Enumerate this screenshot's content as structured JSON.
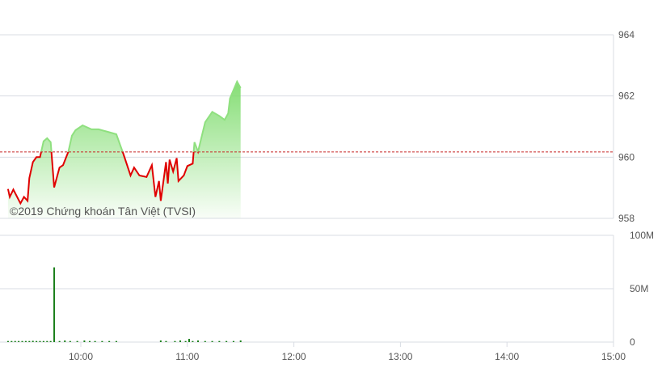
{
  "watermark": "©2019 Chứng khoán Tân Việt (TVSI)",
  "colors": {
    "up": "#8fe07f",
    "down": "#e00000",
    "reference": "#c62828",
    "volume": "#1a7f1a",
    "grid": "#d8dce3"
  },
  "chart_data": [
    {
      "type": "area",
      "reference_price": 960.17,
      "ylim": [
        958,
        964
      ],
      "y_ticks": [
        "958",
        "960",
        "962",
        "964"
      ],
      "x_ticks": [
        "10:00",
        "11:00",
        "12:00",
        "13:00",
        "14:00",
        "15:00"
      ],
      "grid": true,
      "x": [
        "09:19",
        "09:20",
        "09:22",
        "09:26",
        "09:28",
        "09:30",
        "09:31",
        "09:33",
        "09:35",
        "09:37",
        "09:39",
        "09:41",
        "09:43",
        "09:45",
        "09:48",
        "09:50",
        "09:53",
        "09:55",
        "09:57",
        "10:01",
        "10:06",
        "10:10",
        "10:15",
        "10:20",
        "10:24",
        "10:28",
        "10:30",
        "10:33",
        "10:37",
        "10:40",
        "10:42",
        "10:44",
        "10:45",
        "10:48",
        "10:49",
        "10:50",
        "10:52",
        "10:54",
        "10:55",
        "10:58",
        "11:00",
        "11:03",
        "11:04",
        "11:06",
        "11:10",
        "11:14",
        "11:18",
        "11:21",
        "11:23",
        "11:24",
        "11:28",
        "11:30"
      ],
      "y": [
        958.96,
        958.7,
        958.94,
        958.49,
        958.7,
        958.57,
        959.32,
        959.84,
        960.0,
        960.0,
        960.52,
        960.62,
        960.49,
        959.01,
        959.66,
        959.74,
        960.18,
        960.7,
        960.88,
        961.04,
        960.91,
        960.91,
        960.83,
        960.75,
        960.1,
        959.4,
        959.66,
        959.4,
        959.35,
        959.74,
        958.7,
        959.22,
        958.57,
        959.84,
        959.14,
        959.92,
        959.53,
        959.97,
        959.22,
        959.4,
        959.71,
        959.79,
        960.49,
        960.18,
        961.14,
        961.48,
        961.35,
        961.22,
        961.43,
        961.92,
        962.47,
        962.26
      ]
    },
    {
      "type": "bar",
      "ylim": [
        0,
        100
      ],
      "y_ticks": [
        "0",
        "50M",
        "100M"
      ],
      "x": [
        "09:19",
        "09:21",
        "09:23",
        "09:25",
        "09:27",
        "09:29",
        "09:31",
        "09:33",
        "09:35",
        "09:37",
        "09:39",
        "09:41",
        "09:43",
        "09:45",
        "09:48",
        "09:51",
        "09:54",
        "09:58",
        "10:02",
        "10:05",
        "10:08",
        "10:12",
        "10:16",
        "10:20",
        "10:45",
        "10:48",
        "10:53",
        "10:56",
        "10:59",
        "11:01",
        "11:03",
        "11:06",
        "11:10",
        "11:14",
        "11:18",
        "11:22",
        "11:26",
        "11:30"
      ],
      "values": [
        1,
        1,
        1,
        1,
        1,
        1,
        1,
        1.2,
        1,
        1,
        1,
        1,
        1,
        70,
        1,
        1.5,
        1,
        1,
        1.5,
        1,
        1,
        1,
        1,
        1,
        1.5,
        1,
        1,
        1.5,
        1,
        3,
        1,
        1.5,
        1,
        1,
        1,
        1,
        1,
        1.5
      ]
    }
  ]
}
